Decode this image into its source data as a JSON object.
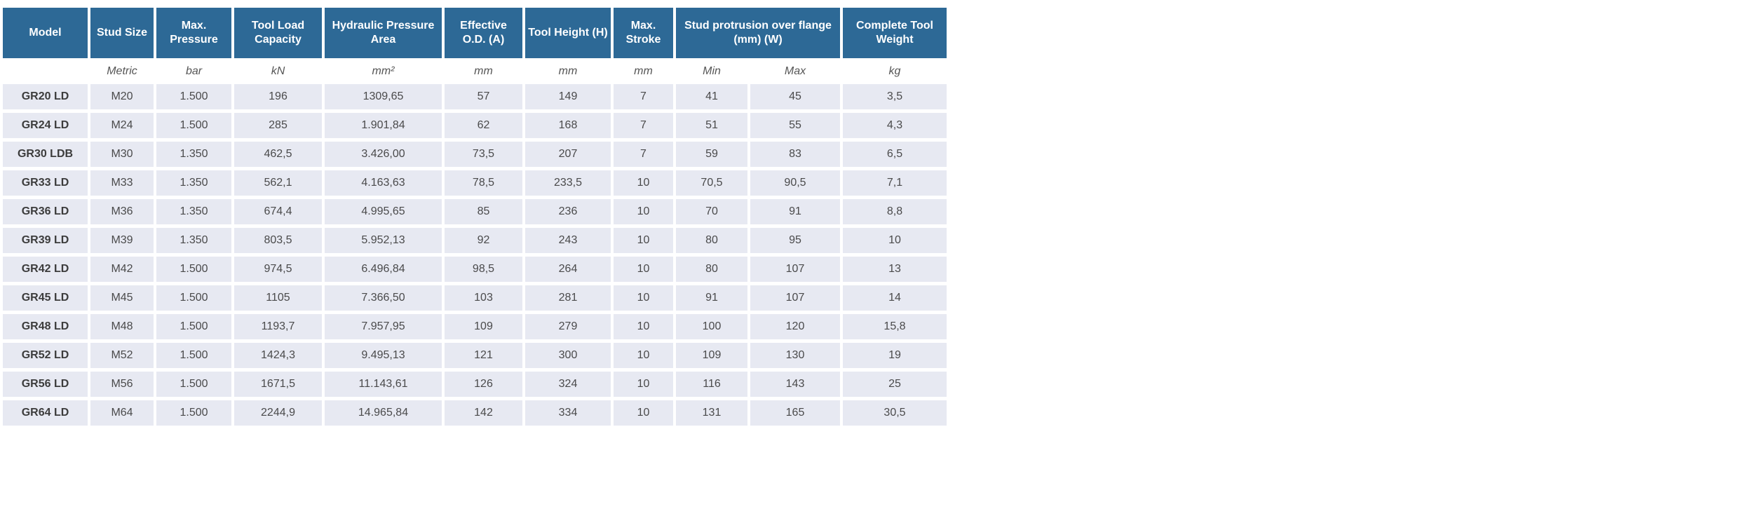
{
  "colors": {
    "header_bg": "#2d6996",
    "header_text": "#ffffff",
    "cell_bg": "#e7e9f2",
    "cell_text": "#4a4a4b",
    "model_text": "#3c3c3c",
    "units_text": "#555555"
  },
  "chart_data": {
    "type": "table",
    "columns": [
      "Model",
      "Stud Size",
      "Max. Pressure",
      "Tool Load Capacity",
      "Hydraulic Pressure Area",
      "Effective O.D. (A)",
      "Tool Height (H)",
      "Max. Stroke",
      "Stud protrusion over flange (mm) (W)",
      "Complete Tool Weight"
    ],
    "units": [
      "",
      "Metric",
      "bar",
      "kN",
      "mm²",
      "mm",
      "mm",
      "mm",
      "Min",
      "Max",
      "kg"
    ],
    "rows": [
      [
        "GR20 LD",
        "M20",
        "1.500",
        "196",
        "1309,65",
        "57",
        "149",
        "7",
        "41",
        "45",
        "3,5"
      ],
      [
        "GR24 LD",
        "M24",
        "1.500",
        "285",
        "1.901,84",
        "62",
        "168",
        "7",
        "51",
        "55",
        "4,3"
      ],
      [
        "GR30 LDB",
        "M30",
        "1.350",
        "462,5",
        "3.426,00",
        "73,5",
        "207",
        "7",
        "59",
        "83",
        "6,5"
      ],
      [
        "GR33 LD",
        "M33",
        "1.350",
        "562,1",
        "4.163,63",
        "78,5",
        "233,5",
        "10",
        "70,5",
        "90,5",
        "7,1"
      ],
      [
        "GR36 LD",
        "M36",
        "1.350",
        "674,4",
        "4.995,65",
        "85",
        "236",
        "10",
        "70",
        "91",
        "8,8"
      ],
      [
        "GR39 LD",
        "M39",
        "1.350",
        "803,5",
        "5.952,13",
        "92",
        "243",
        "10",
        "80",
        "95",
        "10"
      ],
      [
        "GR42 LD",
        "M42",
        "1.500",
        "974,5",
        "6.496,84",
        "98,5",
        "264",
        "10",
        "80",
        "107",
        "13"
      ],
      [
        "GR45 LD",
        "M45",
        "1.500",
        "1105",
        "7.366,50",
        "103",
        "281",
        "10",
        "91",
        "107",
        "14"
      ],
      [
        "GR48 LD",
        "M48",
        "1.500",
        "1193,7",
        "7.957,95",
        "109",
        "279",
        "10",
        "100",
        "120",
        "15,8"
      ],
      [
        "GR52 LD",
        "M52",
        "1.500",
        "1424,3",
        "9.495,13",
        "121",
        "300",
        "10",
        "109",
        "130",
        "19"
      ],
      [
        "GR56 LD",
        "M56",
        "1.500",
        "1671,5",
        "11.143,61",
        "126",
        "324",
        "10",
        "116",
        "143",
        "25"
      ],
      [
        "GR64 LD",
        "M64",
        "1.500",
        "2244,9",
        "14.965,84",
        "142",
        "334",
        "10",
        "131",
        "165",
        "30,5"
      ]
    ]
  }
}
